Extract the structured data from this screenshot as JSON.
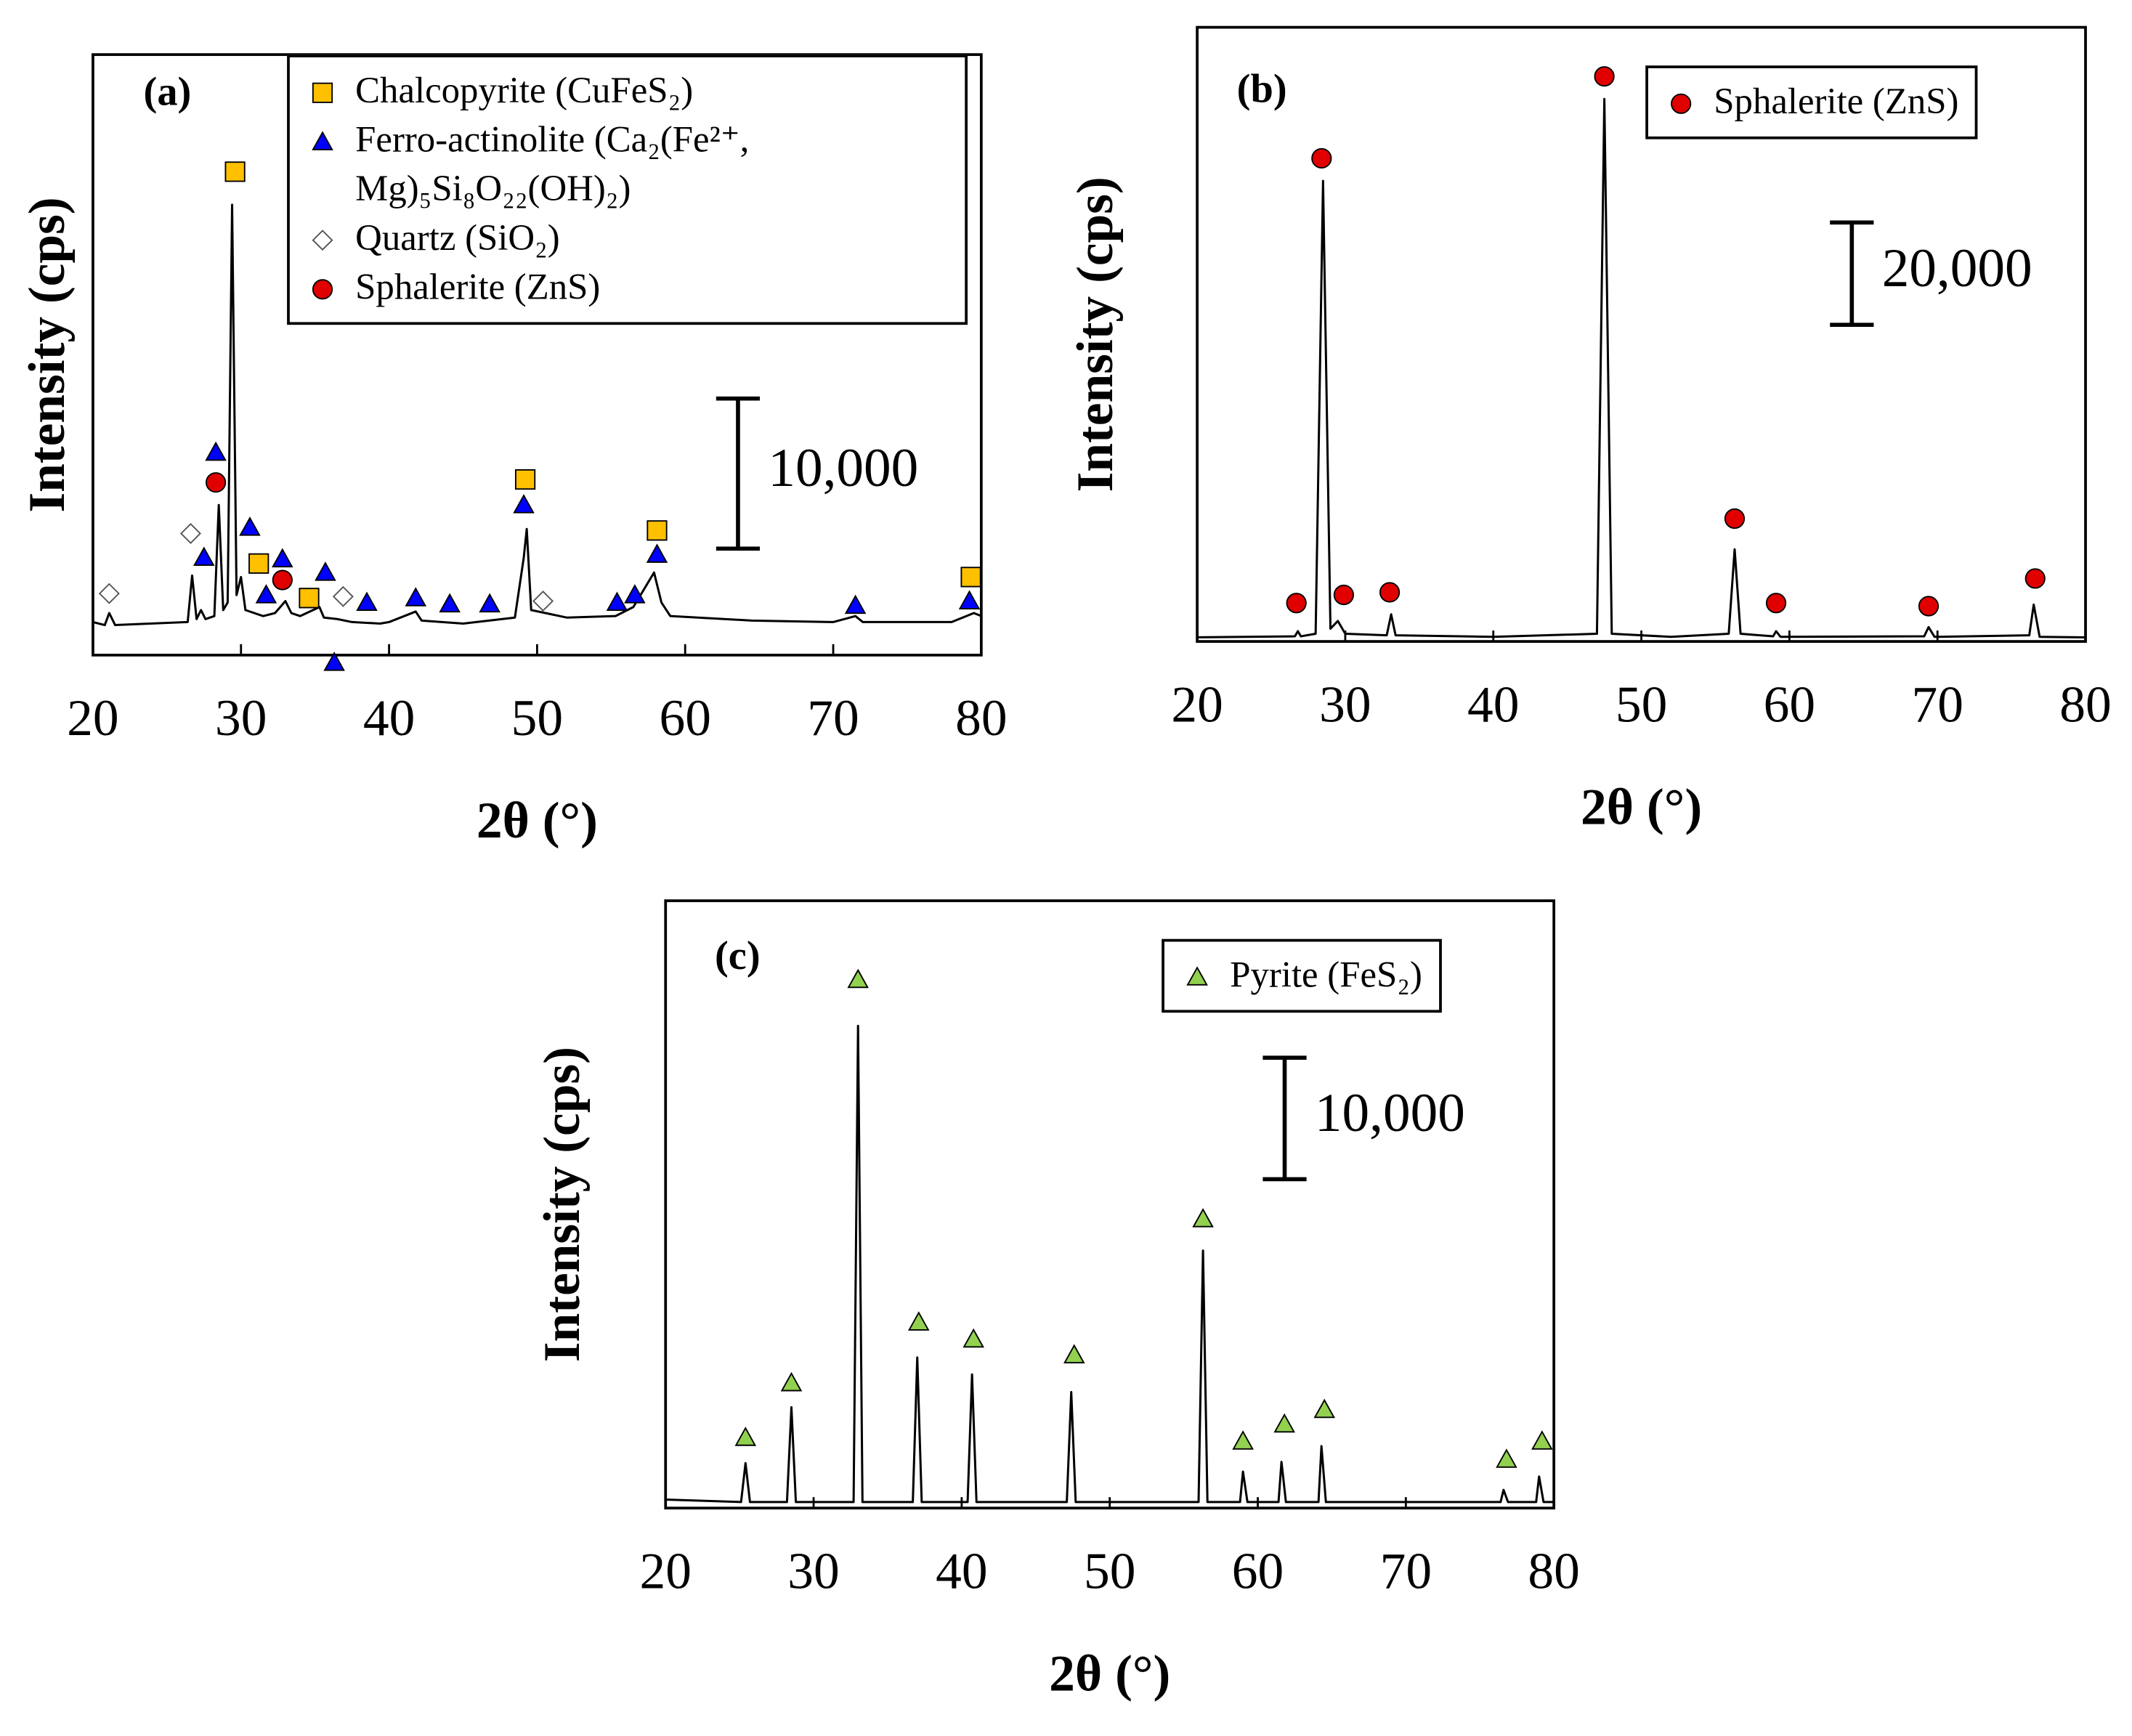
{
  "chart_data": [
    {
      "type": "line",
      "panel_label": "(a)",
      "xlabel": "2θ (°)",
      "ylabel": "Intensity (cps)",
      "xlim": [
        20,
        80
      ],
      "xticks": [
        20,
        30,
        40,
        50,
        60,
        70,
        80
      ],
      "ylim": [
        0,
        40000
      ],
      "scale_bar": {
        "value": 10000,
        "label": "10,000"
      },
      "pattern": {
        "color": "#000000",
        "x": [
          20,
          20.8,
          21.1,
          21.5,
          26.4,
          26.7,
          27.0,
          27.3,
          27.6,
          28.2,
          28.5,
          28.8,
          29.1,
          29.4,
          29.7,
          30.0,
          30.3,
          31.5,
          32.3,
          33.0,
          33.4,
          34.0,
          35.3,
          35.6,
          36.5,
          37.5,
          39.4,
          40.0,
          41.8,
          42.2,
          45,
          48.5,
          48.8,
          49.1,
          49.3,
          49.6,
          52,
          55.3,
          56.5,
          57.9,
          58.4,
          59,
          64.5,
          70,
          71.5,
          72,
          78,
          79.5,
          80
        ],
        "values": [
          2200,
          2000,
          2800,
          2000,
          2200,
          5300,
          2400,
          3000,
          2400,
          2600,
          10000,
          3000,
          3500,
          30000,
          4000,
          5200,
          3000,
          2600,
          2800,
          3600,
          2800,
          2600,
          3200,
          2500,
          2400,
          2200,
          2100,
          2200,
          2900,
          2300,
          2100,
          2500,
          4500,
          6500,
          8400,
          3000,
          2500,
          2600,
          3200,
          5500,
          3500,
          2600,
          2300,
          2200,
          2600,
          2200,
          2200,
          2800,
          2600
        ]
      },
      "phases": [
        {
          "name": "Chalcopyrite (CuFeS₂)",
          "marker": "square",
          "color": "#ffc000",
          "x": [
            29.6,
            49.2,
            58.1,
            79.3,
            31.2,
            34.6
          ],
          "values": [
            32200,
            11700,
            8300,
            5200,
            6100,
            3800
          ]
        },
        {
          "name": "Ferro-actinolite (Ca₂(Fe²⁺, Mg)₅Si₈O₂₂(OH)₂)",
          "marker": "triangle",
          "color": "#0000ff",
          "x": [
            28.3,
            27.5,
            30.6,
            31.7,
            32.8,
            35.7,
            36.3,
            38.5,
            41.8,
            44.1,
            46.8,
            49.1,
            55.4,
            56.6,
            58.1,
            71.5,
            79.2
          ],
          "values": [
            13500,
            6500,
            8500,
            4000,
            6400,
            5500,
            -500,
            3500,
            3800,
            3400,
            3400,
            10000,
            3500,
            4000,
            6700,
            3300,
            3600
          ]
        },
        {
          "name": "Quartz (SiO₂)",
          "marker": "diamond",
          "color": "#ffffff",
          "x": [
            21.1,
            26.6,
            36.9,
            50.4
          ],
          "values": [
            4100,
            8100,
            3900,
            3600
          ]
        },
        {
          "name": "Sphalerite (ZnS)",
          "marker": "circle",
          "color": "#e00000",
          "x": [
            28.3,
            32.8
          ],
          "values": [
            11500,
            5000
          ]
        }
      ]
    },
    {
      "type": "line",
      "panel_label": "(b)",
      "xlabel": "2θ (°)",
      "ylabel": "Intensity (cps)",
      "xlim": [
        20,
        80
      ],
      "xticks": [
        20,
        30,
        40,
        50,
        60,
        70,
        80
      ],
      "ylim": [
        0,
        120000
      ],
      "scale_bar": {
        "value": 20000,
        "label": "20,000"
      },
      "pattern": {
        "color": "#000000",
        "x": [
          20,
          26.6,
          26.8,
          27.0,
          28.0,
          28.5,
          29.0,
          29.5,
          30.0,
          32.8,
          33.1,
          33.4,
          40,
          47.0,
          47.5,
          48.0,
          52,
          55.9,
          56.3,
          56.7,
          58.9,
          59.1,
          59.4,
          69.1,
          69.4,
          69.8,
          76.2,
          76.5,
          76.9,
          80
        ],
        "values": [
          800,
          1000,
          2000,
          1000,
          1500,
          90000,
          2500,
          4000,
          1500,
          1200,
          5300,
          1200,
          900,
          1500,
          106000,
          1500,
          900,
          1500,
          18000,
          1500,
          1000,
          2000,
          900,
          1000,
          2800,
          900,
          1200,
          7200,
          900,
          800
        ]
      },
      "phases": [
        {
          "name": "Sphalerite (ZnS)",
          "marker": "circle",
          "color": "#e00000",
          "x": [
            26.7,
            28.4,
            29.9,
            33.0,
            47.5,
            56.3,
            59.1,
            69.4,
            76.6
          ],
          "values": [
            7500,
            94400,
            9100,
            9600,
            110400,
            24000,
            7500,
            6900,
            12300
          ]
        }
      ]
    },
    {
      "type": "line",
      "panel_label": "(c)",
      "xlabel": "2θ (°)",
      "ylabel": "Intensity (cps)",
      "xlim": [
        20,
        80
      ],
      "xticks": [
        20,
        30,
        40,
        50,
        60,
        70,
        80
      ],
      "ylim": [
        0,
        50000
      ],
      "scale_bar": {
        "value": 10000,
        "label": "10,000"
      },
      "pattern": {
        "color": "#000000",
        "x": [
          20,
          25.1,
          25.4,
          25.7,
          28.2,
          28.5,
          28.8,
          32.7,
          33.0,
          33.3,
          36.7,
          37.0,
          37.3,
          40.4,
          40.7,
          41.0,
          47.1,
          47.4,
          47.7,
          56.0,
          56.3,
          56.6,
          58.8,
          59.0,
          59.3,
          61.4,
          61.6,
          61.9,
          64.1,
          64.3,
          64.6,
          76.4,
          76.6,
          76.9,
          78.8,
          79.0,
          79.3,
          80
        ],
        "values": [
          700,
          500,
          3700,
          500,
          500,
          8300,
          500,
          500,
          39700,
          500,
          500,
          12400,
          500,
          500,
          11000,
          500,
          500,
          9550,
          500,
          500,
          21200,
          500,
          500,
          3000,
          500,
          500,
          3800,
          500,
          500,
          5100,
          500,
          500,
          1500,
          500,
          500,
          2600,
          500,
          500
        ]
      },
      "phases": [
        {
          "name": "Pyrite (FeS₂)",
          "marker": "triangle",
          "color": "#92d050",
          "x": [
            25.4,
            28.5,
            33.0,
            37.1,
            40.8,
            47.6,
            56.3,
            59.0,
            61.8,
            64.5,
            76.8,
            79.2
          ],
          "values": [
            5800,
            10300,
            43500,
            15300,
            13900,
            12600,
            23800,
            5500,
            6900,
            8100,
            4000,
            5500
          ]
        }
      ]
    }
  ]
}
